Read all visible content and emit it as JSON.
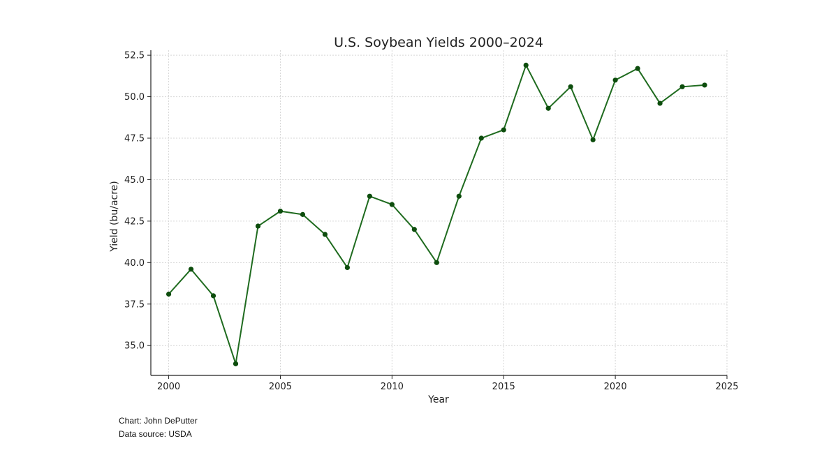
{
  "chart_data": {
    "type": "line",
    "title": "U.S. Soybean Yields 2000–2024",
    "xlabel": "Year",
    "ylabel": "Yield (bu/acre)",
    "xlim": [
      1999.2,
      2025
    ],
    "ylim": [
      33.2,
      52.8
    ],
    "x_ticks": [
      "2000",
      "2005",
      "2010",
      "2015",
      "2020",
      "2025"
    ],
    "y_ticks": [
      "35.0",
      "37.5",
      "40.0",
      "42.5",
      "45.0",
      "47.5",
      "50.0",
      "52.5"
    ],
    "grid": true,
    "color": "#1f6b1f",
    "marker_color": "#0d4d0d",
    "series": [
      {
        "x": [
          2000,
          2001,
          2002,
          2003,
          2004,
          2005,
          2006,
          2007,
          2008,
          2009,
          2010,
          2011,
          2012,
          2013,
          2014,
          2015,
          2016,
          2017,
          2018,
          2019,
          2020,
          2021,
          2022,
          2023,
          2024
        ],
        "values": [
          38.1,
          39.6,
          38.0,
          33.9,
          42.2,
          43.1,
          42.9,
          41.7,
          39.7,
          44.0,
          43.5,
          42.0,
          40.0,
          44.0,
          47.5,
          48.0,
          51.9,
          49.3,
          50.6,
          47.4,
          51.0,
          51.7,
          49.6,
          50.6,
          50.7
        ]
      }
    ]
  },
  "credits": {
    "chart_by": "Chart: John DePutter",
    "source": "Data source: USDA"
  }
}
